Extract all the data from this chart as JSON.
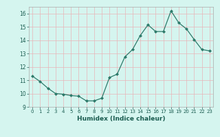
{
  "x": [
    0,
    1,
    2,
    3,
    4,
    5,
    6,
    7,
    8,
    9,
    10,
    11,
    12,
    13,
    14,
    15,
    16,
    17,
    18,
    19,
    20,
    21,
    22,
    23
  ],
  "y": [
    11.3,
    10.9,
    10.4,
    10.0,
    9.95,
    9.85,
    9.8,
    9.45,
    9.45,
    9.65,
    11.2,
    11.45,
    12.75,
    13.3,
    14.35,
    15.15,
    14.65,
    14.65,
    16.2,
    15.3,
    14.85,
    14.05,
    13.3,
    13.2
  ],
  "xlabel": "Humidex (Indice chaleur)",
  "ylim": [
    9,
    16.5
  ],
  "xlim": [
    -0.5,
    23.5
  ],
  "yticks": [
    9,
    10,
    11,
    12,
    13,
    14,
    15,
    16
  ],
  "xticks": [
    0,
    1,
    2,
    3,
    4,
    5,
    6,
    7,
    8,
    9,
    10,
    11,
    12,
    13,
    14,
    15,
    16,
    17,
    18,
    19,
    20,
    21,
    22,
    23
  ],
  "xtick_labels": [
    "0",
    "1",
    "2",
    "3",
    "4",
    "5",
    "6",
    "7",
    "8",
    "9",
    "10",
    "11",
    "12",
    "13",
    "14",
    "15",
    "16",
    "17",
    "18",
    "19",
    "20",
    "21",
    "22",
    "23"
  ],
  "line_color": "#2d7a6a",
  "marker_color": "#2d7a6a",
  "bg_color": "#d5f5ef",
  "grid_color": "#e8b4b8",
  "xlabel_color": "#1a5c50"
}
